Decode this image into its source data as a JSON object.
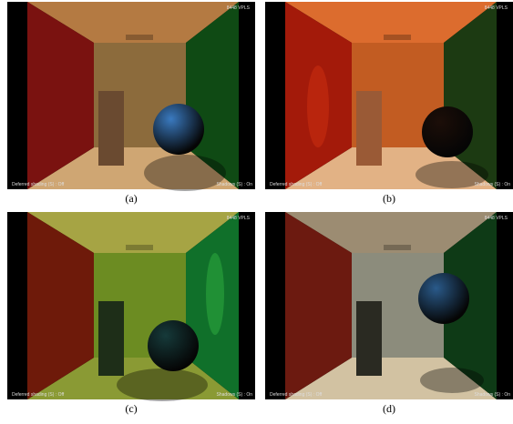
{
  "figure": {
    "panels": [
      {
        "caption": "(a)",
        "vpl_label": "8448 VPLS",
        "left_label": "Deferred shading (S) : Off",
        "right_label": "Shadows (S) : On"
      },
      {
        "caption": "(b)",
        "vpl_label": "8448 VPLS",
        "left_label": "Deferred shading (S) : Off",
        "right_label": "Shadows (S) : On"
      },
      {
        "caption": "(c)",
        "vpl_label": "8448 VPLS",
        "left_label": "Deferred shading (S) : Off",
        "right_label": "Shadows (S) : On"
      },
      {
        "caption": "(d)",
        "vpl_label": "8448 VPLS",
        "left_label": "Deferred shading (S) : Off",
        "right_label": "Shadows (S) : On"
      }
    ]
  }
}
